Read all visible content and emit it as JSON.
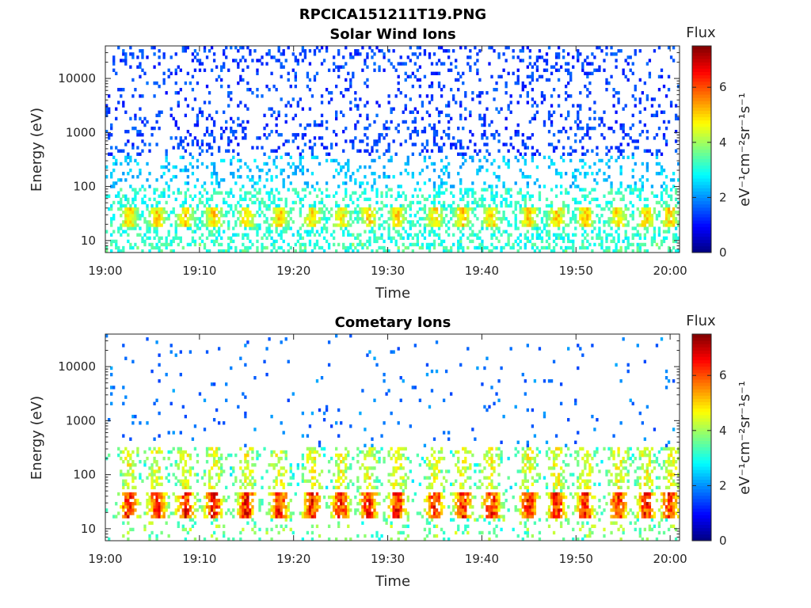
{
  "figure_title": "RPCICA151211T19.PNG",
  "chart_data": [
    {
      "type": "heatmap",
      "title": "Solar Wind Ions",
      "xlabel": "Time",
      "ylabel": "Energy (eV)",
      "xticks": [
        "19:00",
        "19:10",
        "19:20",
        "19:30",
        "19:40",
        "19:50",
        "20:00"
      ],
      "xlim": [
        "19:00",
        "20:01"
      ],
      "yscale": "log",
      "yticks": [
        10,
        100,
        1000,
        10000
      ],
      "ytick_labels": [
        "10",
        "100",
        "1000",
        "10000"
      ],
      "ylim": [
        6,
        40000
      ],
      "colorbar": {
        "label": "Flux",
        "unit_label": "eV⁻¹cm⁻²sr⁻¹s⁻¹",
        "ticks": [
          "0",
          "2",
          "4",
          "6"
        ],
        "range": [
          0,
          7.5
        ],
        "colormap": "jet"
      },
      "pattern": {
        "sparse_high_energy_counts": true,
        "bursts_minutes": [
          2.5,
          5.5,
          8.5,
          11.5,
          15,
          18.5,
          22,
          25,
          28,
          31,
          35,
          38,
          41,
          45,
          48,
          51,
          54.5,
          57.5,
          60
        ],
        "burst_energy_eV": [
          18,
          40
        ],
        "burst_peak_level": 5.5
      }
    },
    {
      "type": "heatmap",
      "title": "Cometary Ions",
      "xlabel": "Time",
      "ylabel": "Energy (eV)",
      "xticks": [
        "19:00",
        "19:10",
        "19:20",
        "19:30",
        "19:40",
        "19:50",
        "20:00"
      ],
      "xlim": [
        "19:00",
        "20:01"
      ],
      "yscale": "log",
      "yticks": [
        10,
        100,
        1000,
        10000
      ],
      "ytick_labels": [
        "10",
        "100",
        "1000",
        "10000"
      ],
      "ylim": [
        6,
        40000
      ],
      "colorbar": {
        "label": "Flux",
        "unit_label": "eV⁻¹cm⁻²sr⁻¹s⁻¹",
        "ticks": [
          "0",
          "2",
          "4",
          "6"
        ],
        "range": [
          0,
          7.5
        ],
        "colormap": "jet"
      },
      "pattern": {
        "sparse_high_energy_counts": true,
        "bursts_minutes": [
          2.5,
          5.5,
          8.5,
          11.5,
          15,
          18.5,
          22,
          25,
          28,
          31,
          35,
          38,
          41,
          45,
          48,
          51,
          54.5,
          57.5,
          60
        ],
        "burst_energy_eV": [
          15,
          45
        ],
        "burst_peak_level": 7
      }
    }
  ]
}
